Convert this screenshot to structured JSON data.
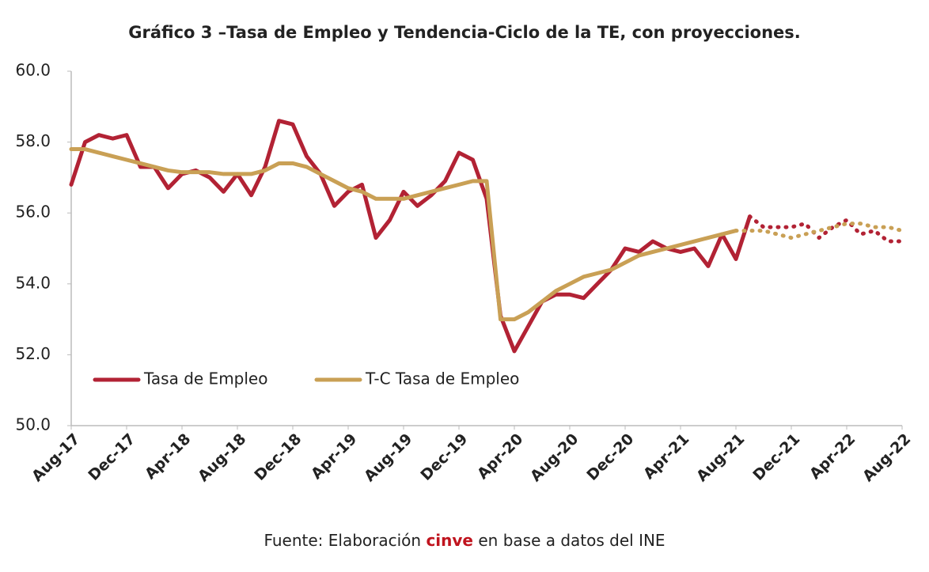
{
  "chart_data": {
    "type": "line",
    "title": "Gráfico 3 –Tasa de Empleo y Tendencia-Ciclo de la TE, con proyecciones.",
    "categories": [
      "Aug-17",
      null,
      null,
      null,
      "Dec-17",
      null,
      null,
      null,
      "Apr-18",
      null,
      null,
      null,
      "Aug-18",
      null,
      null,
      null,
      "Dec-18",
      null,
      null,
      null,
      "Apr-19",
      null,
      null,
      null,
      "Aug-19",
      null,
      null,
      null,
      "Dec-19",
      null,
      null,
      null,
      "Apr-20",
      null,
      null,
      null,
      "Aug-20",
      null,
      null,
      null,
      "Dec-20",
      null,
      null,
      null,
      "Apr-21",
      null,
      null,
      null,
      "Aug-21",
      null,
      null,
      null,
      "Dec-21",
      null,
      null,
      null,
      "Apr-22",
      null,
      null,
      null,
      "Aug-22"
    ],
    "series": [
      {
        "name": "Tasa de Empleo",
        "color": "#b22234",
        "dotted_from": 49,
        "values": [
          56.8,
          58.0,
          58.2,
          58.1,
          58.2,
          57.3,
          57.3,
          56.7,
          57.1,
          57.2,
          57.0,
          56.6,
          57.1,
          56.5,
          57.3,
          58.6,
          58.5,
          57.6,
          57.1,
          56.2,
          56.6,
          56.8,
          55.3,
          55.8,
          56.6,
          56.2,
          56.5,
          56.9,
          57.7,
          57.5,
          56.4,
          53.1,
          52.1,
          52.8,
          53.5,
          53.7,
          53.7,
          53.6,
          54.0,
          54.4,
          55.0,
          54.9,
          55.2,
          55.0,
          54.9,
          55.0,
          54.5,
          55.4,
          54.7,
          55.9,
          55.6,
          55.6,
          55.6,
          55.7,
          55.3,
          55.6,
          55.8,
          55.4,
          55.5,
          55.2,
          55.2
        ]
      },
      {
        "name": "T-C Tasa de Empleo",
        "color": "#c9a055",
        "dotted_from": 48,
        "values": [
          57.8,
          57.8,
          57.7,
          57.6,
          57.5,
          57.4,
          57.3,
          57.2,
          57.15,
          57.15,
          57.15,
          57.1,
          57.1,
          57.1,
          57.2,
          57.4,
          57.4,
          57.3,
          57.1,
          56.9,
          56.7,
          56.6,
          56.4,
          56.4,
          56.4,
          56.5,
          56.6,
          56.7,
          56.8,
          56.9,
          56.9,
          53.0,
          53.0,
          53.2,
          53.5,
          53.8,
          54.0,
          54.2,
          54.3,
          54.4,
          54.6,
          54.8,
          54.9,
          55.0,
          55.1,
          55.2,
          55.3,
          55.4,
          55.5,
          55.5,
          55.5,
          55.4,
          55.3,
          55.4,
          55.5,
          55.6,
          55.7,
          55.7,
          55.6,
          55.6,
          55.5
        ]
      }
    ],
    "ylim": [
      50,
      60
    ],
    "yticks": [
      {
        "value": 50,
        "label": "50.0"
      },
      {
        "value": 52,
        "label": "52.0"
      },
      {
        "value": 54,
        "label": "54.0"
      },
      {
        "value": 56,
        "label": "56.0"
      },
      {
        "value": 58,
        "label": "58.0"
      },
      {
        "value": 60,
        "label": "60.0"
      }
    ],
    "legend": "lower left",
    "source": {
      "prefix": "Fuente: Elaboración",
      "highlight": "cinve",
      "suffix": "en base a datos del INE"
    }
  }
}
